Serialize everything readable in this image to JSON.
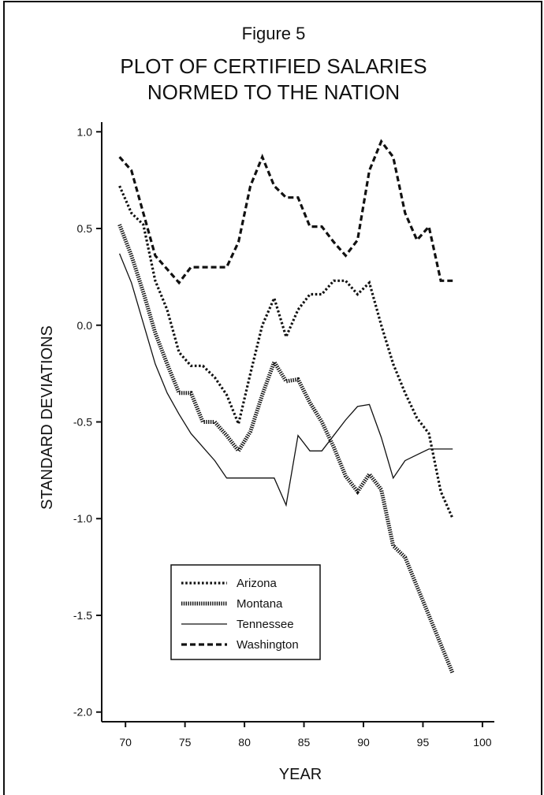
{
  "chart_data": {
    "type": "line",
    "figure_label": "Figure 5",
    "title_lines": [
      "PLOT OF CERTIFIED SALARIES",
      "NORMED TO THE NATION"
    ],
    "xlabel": "YEAR",
    "ylabel": "STANDARD DEVIATIONS",
    "xlim": [
      68,
      101
    ],
    "ylim": [
      -2.05,
      1.05
    ],
    "x_ticks": [
      70,
      75,
      80,
      85,
      90,
      95,
      100
    ],
    "y_ticks": [
      1.0,
      0.5,
      0.0,
      -0.5,
      -1.0,
      -1.5,
      -2.0
    ],
    "y_tick_labels": [
      "1.0",
      "0.5",
      "0.0",
      "-0.5",
      "-1.0",
      "-1.5",
      "-2.0"
    ],
    "grid": false,
    "legend_position": "bottom-left",
    "series": [
      {
        "name": "Arizona",
        "style": "dotted",
        "color": "#111111",
        "points": [
          [
            69.5,
            0.72
          ],
          [
            70.5,
            0.58
          ],
          [
            71.5,
            0.52
          ],
          [
            72.5,
            0.23
          ],
          [
            73.5,
            0.08
          ],
          [
            74.5,
            -0.14
          ],
          [
            75.5,
            -0.21
          ],
          [
            76.5,
            -0.21
          ],
          [
            77.5,
            -0.27
          ],
          [
            78.5,
            -0.36
          ],
          [
            79.5,
            -0.51
          ],
          [
            80.5,
            -0.25
          ],
          [
            81.5,
            0.0
          ],
          [
            82.5,
            0.14
          ],
          [
            83.5,
            -0.06
          ],
          [
            84.5,
            0.08
          ],
          [
            85.5,
            0.16
          ],
          [
            86.5,
            0.16
          ],
          [
            87.5,
            0.23
          ],
          [
            88.5,
            0.23
          ],
          [
            89.5,
            0.16
          ],
          [
            90.5,
            0.22
          ],
          [
            91.5,
            0.0
          ],
          [
            92.5,
            -0.2
          ],
          [
            93.5,
            -0.35
          ],
          [
            94.5,
            -0.48
          ],
          [
            95.5,
            -0.56
          ],
          [
            96.5,
            -0.86
          ],
          [
            97.5,
            -1.0
          ]
        ]
      },
      {
        "name": "Montana",
        "style": "dense-dotted",
        "color": "#111111",
        "points": [
          [
            69.5,
            0.52
          ],
          [
            70.5,
            0.36
          ],
          [
            71.5,
            0.17
          ],
          [
            72.5,
            -0.04
          ],
          [
            73.5,
            -0.2
          ],
          [
            74.5,
            -0.35
          ],
          [
            75.5,
            -0.35
          ],
          [
            76.5,
            -0.5
          ],
          [
            77.5,
            -0.5
          ],
          [
            78.5,
            -0.57
          ],
          [
            79.5,
            -0.65
          ],
          [
            80.5,
            -0.55
          ],
          [
            81.5,
            -0.36
          ],
          [
            82.5,
            -0.19
          ],
          [
            83.5,
            -0.29
          ],
          [
            84.5,
            -0.28
          ],
          [
            85.5,
            -0.4
          ],
          [
            86.5,
            -0.5
          ],
          [
            87.5,
            -0.63
          ],
          [
            88.5,
            -0.78
          ],
          [
            89.5,
            -0.86
          ],
          [
            90.5,
            -0.77
          ],
          [
            91.5,
            -0.85
          ],
          [
            92.5,
            -1.14
          ],
          [
            93.5,
            -1.2
          ],
          [
            94.5,
            -1.35
          ],
          [
            95.5,
            -1.5
          ],
          [
            96.5,
            -1.65
          ],
          [
            97.5,
            -1.8
          ]
        ]
      },
      {
        "name": "Tennessee",
        "style": "solid",
        "color": "#111111",
        "points": [
          [
            69.5,
            0.37
          ],
          [
            70.5,
            0.22
          ],
          [
            71.5,
            0.01
          ],
          [
            72.5,
            -0.2
          ],
          [
            73.5,
            -0.35
          ],
          [
            74.5,
            -0.46
          ],
          [
            75.5,
            -0.56
          ],
          [
            76.5,
            -0.63
          ],
          [
            77.5,
            -0.7
          ],
          [
            78.5,
            -0.79
          ],
          [
            80.0,
            -0.79
          ],
          [
            81.5,
            -0.79
          ],
          [
            82.5,
            -0.79
          ],
          [
            83.5,
            -0.93
          ],
          [
            84.5,
            -0.57
          ],
          [
            85.5,
            -0.65
          ],
          [
            86.5,
            -0.65
          ],
          [
            87.5,
            -0.57
          ],
          [
            88.5,
            -0.49
          ],
          [
            89.5,
            -0.42
          ],
          [
            90.5,
            -0.41
          ],
          [
            91.5,
            -0.58
          ],
          [
            92.5,
            -0.79
          ],
          [
            93.5,
            -0.7
          ],
          [
            94.5,
            -0.67
          ],
          [
            95.5,
            -0.64
          ],
          [
            96.5,
            -0.64
          ],
          [
            97.5,
            -0.64
          ]
        ]
      },
      {
        "name": "Washington",
        "style": "dashed",
        "color": "#111111",
        "points": [
          [
            69.5,
            0.87
          ],
          [
            70.5,
            0.8
          ],
          [
            71.5,
            0.58
          ],
          [
            72.5,
            0.36
          ],
          [
            73.5,
            0.29
          ],
          [
            74.5,
            0.22
          ],
          [
            75.5,
            0.3
          ],
          [
            76.5,
            0.3
          ],
          [
            77.5,
            0.3
          ],
          [
            78.5,
            0.3
          ],
          [
            79.5,
            0.43
          ],
          [
            80.5,
            0.72
          ],
          [
            81.5,
            0.87
          ],
          [
            82.5,
            0.72
          ],
          [
            83.5,
            0.66
          ],
          [
            84.5,
            0.66
          ],
          [
            85.5,
            0.51
          ],
          [
            86.5,
            0.51
          ],
          [
            87.5,
            0.43
          ],
          [
            88.5,
            0.36
          ],
          [
            89.5,
            0.44
          ],
          [
            90.5,
            0.8
          ],
          [
            91.5,
            0.95
          ],
          [
            92.5,
            0.87
          ],
          [
            93.5,
            0.58
          ],
          [
            94.5,
            0.44
          ],
          [
            95.5,
            0.51
          ],
          [
            96.5,
            0.23
          ],
          [
            97.5,
            0.23
          ]
        ]
      }
    ]
  }
}
